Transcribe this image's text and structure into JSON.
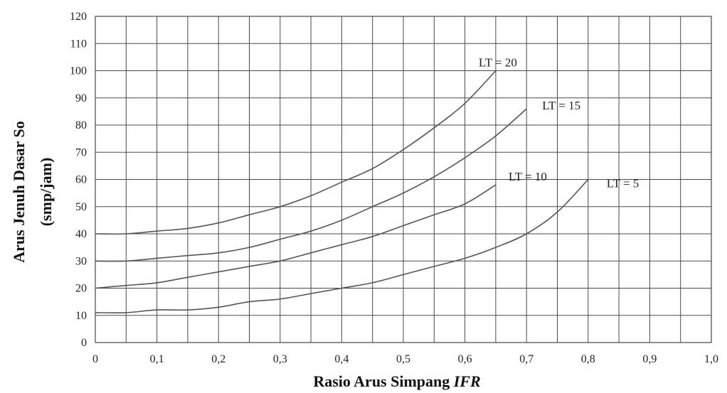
{
  "chart_data": {
    "type": "line",
    "xlabel_prefix": "Rasio Arus Simpang ",
    "xlabel_italic": "IFR",
    "ylabel_line1": "Arus Jenuh Dasar So",
    "ylabel_line2": "(smp/jam)",
    "xlim": [
      0,
      1.0
    ],
    "ylim": [
      0,
      120
    ],
    "x_ticks": [
      0,
      0.1,
      0.2,
      0.3,
      0.4,
      0.5,
      0.6,
      0.7,
      0.8,
      0.9,
      1.0
    ],
    "x_tick_labels": [
      "0",
      "0,1",
      "0,2",
      "0,3",
      "0,4",
      "0,5",
      "0,6",
      "0,7",
      "0,8",
      "0,9",
      "1,0"
    ],
    "y_ticks": [
      0,
      10,
      20,
      30,
      40,
      50,
      60,
      70,
      80,
      90,
      100,
      110,
      120
    ],
    "y_tick_labels": [
      "0",
      "10",
      "20",
      "30",
      "40",
      "50",
      "60",
      "70",
      "80",
      "90",
      "100",
      "110",
      "120"
    ],
    "x_grid": [
      0,
      0.05,
      0.1,
      0.15,
      0.2,
      0.25,
      0.3,
      0.35,
      0.4,
      0.45,
      0.5,
      0.55,
      0.6,
      0.65,
      0.7,
      0.75,
      0.8,
      0.85,
      0.9,
      0.95,
      1.0
    ],
    "grid": true,
    "series": [
      {
        "name": "LT = 20",
        "x": [
          0,
          0.05,
          0.1,
          0.15,
          0.2,
          0.25,
          0.3,
          0.35,
          0.4,
          0.45,
          0.5,
          0.55,
          0.6,
          0.65
        ],
        "y": [
          40,
          40,
          41,
          42,
          44,
          47,
          50,
          54,
          59,
          64,
          71,
          79,
          88,
          100
        ]
      },
      {
        "name": "LT = 15",
        "x": [
          0,
          0.05,
          0.1,
          0.15,
          0.2,
          0.25,
          0.3,
          0.35,
          0.4,
          0.45,
          0.5,
          0.55,
          0.6,
          0.65,
          0.7
        ],
        "y": [
          30,
          30,
          31,
          32,
          33,
          35,
          38,
          41,
          45,
          50,
          55,
          61,
          68,
          76,
          86
        ]
      },
      {
        "name": "LT = 10",
        "x": [
          0,
          0.05,
          0.1,
          0.15,
          0.2,
          0.25,
          0.3,
          0.35,
          0.4,
          0.45,
          0.5,
          0.55,
          0.6,
          0.65
        ],
        "y": [
          20,
          21,
          22,
          24,
          26,
          28,
          30,
          33,
          36,
          39,
          43,
          47,
          51,
          58
        ]
      },
      {
        "name": "LT = 5",
        "x": [
          0,
          0.05,
          0.1,
          0.15,
          0.2,
          0.25,
          0.3,
          0.35,
          0.4,
          0.45,
          0.5,
          0.55,
          0.6,
          0.65,
          0.7,
          0.75,
          0.8
        ],
        "y": [
          11,
          11,
          12,
          12,
          13,
          15,
          16,
          18,
          20,
          22,
          25,
          28,
          31,
          35,
          40,
          48,
          60
        ]
      }
    ]
  }
}
